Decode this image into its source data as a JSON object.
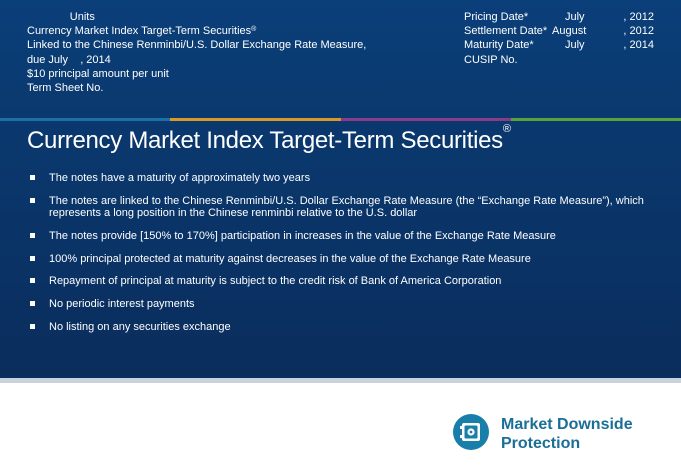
{
  "header_left": [
    "              Units",
    "Currency Market Index Target-Term Securities",
    "Linked to the Chinese Renminbi/U.S. Dollar Exchange Rate Measure,",
    "due July    , 2014",
    "$10 principal amount per unit",
    "Term Sheet No."
  ],
  "registered_mark": "®",
  "header_right": [
    {
      "label": "Pricing Date*",
      "month": "July",
      "year": ", 2012"
    },
    {
      "label": "Settlement Date*",
      "month": "August",
      "year": ", 2012"
    },
    {
      "label": "Maturity Date*",
      "month": "July",
      "year": ", 2014"
    },
    {
      "label": "CUSIP No.",
      "month": "",
      "year": ""
    }
  ],
  "stripe_colors": [
    "#1e6fa8",
    "#d79a28",
    "#8a3a8a",
    "#5aa03c"
  ],
  "title": "Currency Market Index Target-Term Securities",
  "bullets": [
    "The notes have a maturity of approximately two years",
    "The notes are linked to the Chinese Renminbi/U.S. Dollar Exchange Rate Measure (the “Exchange Rate Measure”), which represents a long position in the Chinese renminbi relative to the U.S. dollar",
    "The notes provide [150% to 170%] participation in increases in the value of the Exchange Rate Measure",
    "100% principal protected at maturity against decreases in the value of the Exchange Rate Measure",
    "Repayment of principal at maturity is subject to the credit risk of Bank of America Corporation",
    "No periodic interest payments",
    "No listing on any securities exchange"
  ],
  "badge": {
    "icon": "vault-icon",
    "line1": "Market Downside",
    "line2": "Protection"
  }
}
